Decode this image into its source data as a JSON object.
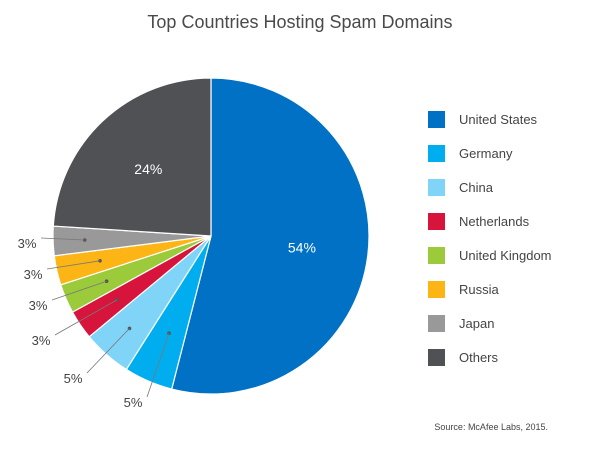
{
  "chart_data": {
    "type": "pie",
    "title": "Top Countries Hosting Spam Domains",
    "categories": [
      "United States",
      "Germany",
      "China",
      "Netherlands",
      "United Kingdom",
      "Russia",
      "Japan",
      "Others"
    ],
    "values": [
      54,
      5,
      5,
      3,
      3,
      3,
      3,
      24
    ],
    "labels": [
      "54%",
      "5%",
      "5%",
      "3%",
      "3%",
      "3%",
      "3%",
      "24%"
    ],
    "colors": [
      "#0071c5",
      "#00aeef",
      "#7fd4f7",
      "#d7143c",
      "#9bcb3b",
      "#fcb514",
      "#999999",
      "#505155"
    ],
    "legend_position": "right",
    "start": "12 o'clock, clockwise"
  },
  "source": "Source: McAfee Labs, 2015."
}
